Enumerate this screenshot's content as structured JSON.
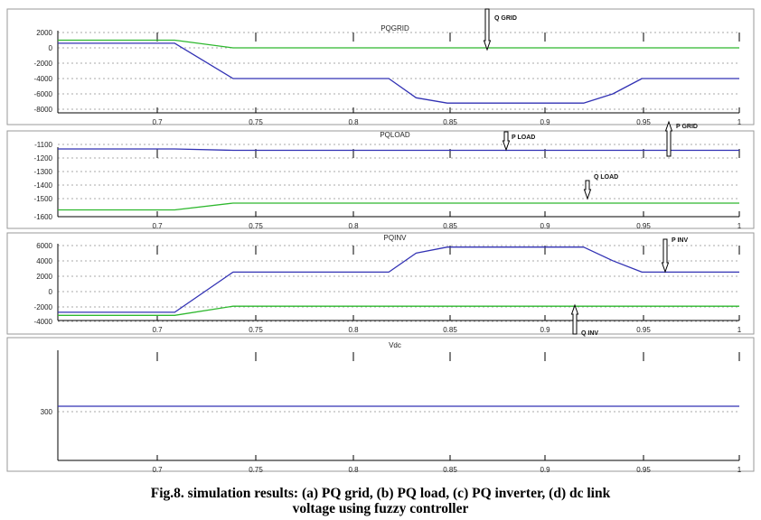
{
  "caption": {
    "line1": "Fig.8. simulation results: (a) PQ grid, (b) PQ load, (c) PQ inverter, (d) dc link",
    "line2": "voltage using fuzzy controller"
  },
  "colors": {
    "p": "#3232b4",
    "q": "#2eb82e",
    "axis": "#000000",
    "grid": "#555555",
    "frame": "#9a9a9a"
  },
  "chart_data": [
    {
      "type": "line",
      "title": "PQGRID",
      "x_ticks": [
        "0.7",
        "0.75",
        "0.8",
        "0.85",
        "0.9",
        "0.95",
        "1"
      ],
      "y_ticks": [
        "2000",
        "0",
        "-2000",
        "-4000",
        "-6000",
        "-8000"
      ],
      "xlim": [
        0.65,
        1.0
      ],
      "ylim": [
        -8000,
        2000
      ],
      "series": [
        {
          "name": "P GRID",
          "color": "p",
          "x": [
            0.65,
            0.71,
            0.74,
            0.76,
            0.82,
            0.834,
            0.85,
            0.9,
            0.92,
            0.935,
            0.95,
            1.0
          ],
          "y": [
            600,
            600,
            -4000,
            -4000,
            -4000,
            -6500,
            -7200,
            -7200,
            -7200,
            -6000,
            -4000,
            -4000
          ]
        },
        {
          "name": "Q GRID",
          "color": "q",
          "x": [
            0.65,
            0.71,
            0.74,
            1.0
          ],
          "y": [
            1000,
            1000,
            0,
            0
          ]
        }
      ]
    },
    {
      "type": "line",
      "title": "PQLOAD",
      "x_ticks": [
        "0.7",
        "0.75",
        "0.8",
        "0.85",
        "0.9",
        "0.95",
        "1"
      ],
      "y_ticks": [
        "-1100",
        "-1200",
        "-1300",
        "-1400",
        "-1500",
        "-1600"
      ],
      "xlim": [
        0.65,
        1.0
      ],
      "ylim": [
        -1600,
        -1100
      ],
      "series": [
        {
          "name": "P LOAD",
          "color": "p",
          "x": [
            0.65,
            0.71,
            0.74,
            1.0
          ],
          "y": [
            -1100,
            -1100,
            -1110,
            -1110
          ]
        },
        {
          "name": "Q LOAD",
          "color": "q",
          "x": [
            0.65,
            0.71,
            0.74,
            1.0
          ],
          "y": [
            -1550,
            -1550,
            -1500,
            -1500
          ]
        }
      ]
    },
    {
      "type": "line",
      "title": "PQINV",
      "x_ticks": [
        "0.7",
        "0.75",
        "0.8",
        "0.85",
        "0.9",
        "0.95",
        "1"
      ],
      "y_ticks": [
        "6000",
        "4000",
        "2000",
        "0",
        "-2000",
        "-4000"
      ],
      "xlim": [
        0.65,
        1.0
      ],
      "ylim": [
        -4000,
        6000
      ],
      "series": [
        {
          "name": "P INV",
          "color": "p",
          "x": [
            0.65,
            0.71,
            0.74,
            0.77,
            0.82,
            0.834,
            0.85,
            0.9,
            0.92,
            0.935,
            0.95,
            1.0
          ],
          "y": [
            -2800,
            -2800,
            2500,
            2500,
            2500,
            5000,
            5800,
            5800,
            5800,
            4000,
            2500,
            2500
          ]
        },
        {
          "name": "Q INV",
          "color": "q",
          "x": [
            0.65,
            0.71,
            0.74,
            1.0
          ],
          "y": [
            -3200,
            -3200,
            -2000,
            -2000
          ]
        }
      ]
    },
    {
      "type": "line",
      "title": "Vdc",
      "x_ticks": [
        "0.7",
        "0.75",
        "0.8",
        "0.85",
        "0.9",
        "0.95",
        "1"
      ],
      "y_ticks": [
        "300"
      ],
      "xlim": [
        0.65,
        1.0
      ],
      "ylim": [
        200,
        400
      ],
      "series": [
        {
          "name": "Vdc",
          "color": "p",
          "x": [
            0.65,
            1.0
          ],
          "y": [
            300,
            300
          ]
        }
      ]
    }
  ],
  "annotations": [
    {
      "text": "Q GRID",
      "panel": 0,
      "arrow": "down"
    },
    {
      "text": "P GRID",
      "panel": 0,
      "arrow": "up"
    },
    {
      "text": "P LOAD",
      "panel": 1,
      "arrow": "down"
    },
    {
      "text": "Q LOAD",
      "panel": 1,
      "arrow": "down"
    },
    {
      "text": "P INV",
      "panel": 2,
      "arrow": "down"
    },
    {
      "text": "Q INV",
      "panel": 2,
      "arrow": "up"
    }
  ]
}
